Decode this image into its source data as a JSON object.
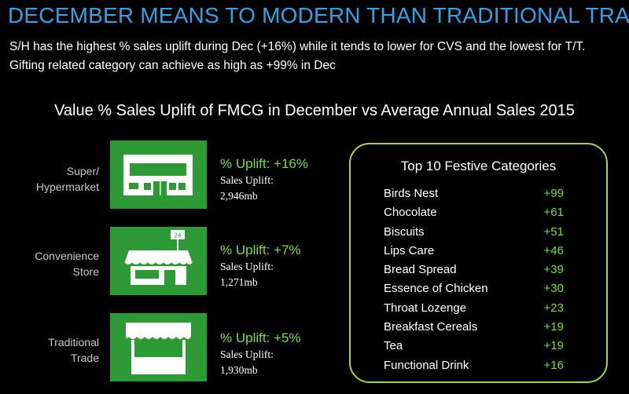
{
  "header": {
    "title": "DECEMBER MEANS TO MODERN THAN TRADITIONAL TRADE",
    "subtitle": "S/H has the highest % sales uplift during Dec (+16%) while it tends to lower for CVS and the lowest for T/T.  Gifting related category can achieve as high as +99% in Dec"
  },
  "section_title": "Value % Sales Uplift of FMCG in December vs Average Annual Sales 2015",
  "channels": [
    {
      "label_line1": "Super/",
      "label_line2": "Hypermarket",
      "icon": "supermarket-icon",
      "uplift": "% Uplift: +16%",
      "sales_label": "Sales Uplift:",
      "sales_value": "2,946mb"
    },
    {
      "label_line1": "Convenience",
      "label_line2": "Store",
      "icon": "convenience-store-icon",
      "badge": "24",
      "uplift": "% Uplift: +7%",
      "sales_label": "Sales Uplift:",
      "sales_value": "1,271mb"
    },
    {
      "label_line1": "Traditional",
      "label_line2": "Trade",
      "icon": "market-stall-icon",
      "uplift": "% Uplift: +5%",
      "sales_label": "Sales Uplift:",
      "sales_value": "1,930mb"
    }
  ],
  "top_categories": {
    "title": "Top 10 Festive Categories",
    "items": [
      {
        "name": "Birds Nest",
        "value": "+99"
      },
      {
        "name": "Chocolate",
        "value": "+61"
      },
      {
        "name": "Biscuits",
        "value": "+51"
      },
      {
        "name": "Lips Care",
        "value": "+46"
      },
      {
        "name": "Bread Spread",
        "value": "+39"
      },
      {
        "name": "Essence of Chicken",
        "value": "+30"
      },
      {
        "name": "Throat Lozenge",
        "value": "+23"
      },
      {
        "name": "Breakfast Cereals",
        "value": "+19"
      },
      {
        "name": "Tea",
        "value": "+19"
      },
      {
        "name": "Functional Drink",
        "value": "+16"
      }
    ]
  },
  "colors": {
    "title": "#2fa3e6",
    "icon_bg": "#2e9a36",
    "uplift": "#7cdc3c",
    "panel_border": "#a6d24a"
  }
}
